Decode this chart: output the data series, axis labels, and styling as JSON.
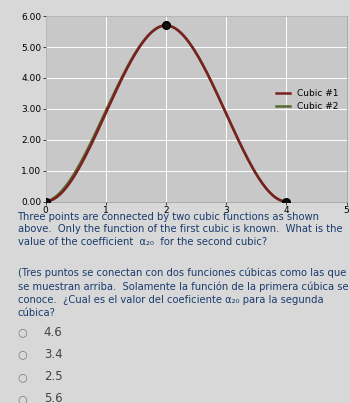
{
  "xlim": [
    0,
    5
  ],
  "ylim": [
    0,
    6.0
  ],
  "yticks": [
    0.0,
    1.0,
    2.0,
    3.0,
    4.0,
    5.0,
    6.0
  ],
  "xticks": [
    0,
    1,
    2,
    3,
    4,
    5
  ],
  "ytick_labels": [
    "0.00",
    "1.00",
    "2.00",
    "3.00",
    "4.00",
    "5.00",
    "6.00"
  ],
  "xtick_labels": [
    "0",
    "1",
    "2",
    "3",
    "4",
    "5"
  ],
  "points": [
    [
      0,
      0
    ],
    [
      2,
      5.7
    ],
    [
      4,
      0
    ]
  ],
  "cubic1_color": "#7B2020",
  "cubic2_color": "#556B2F",
  "point_color": "#000000",
  "bg_color": "#d8d8d8",
  "plot_bg_color": "#c8c8c8",
  "legend_labels": [
    "Cubic #1",
    "Cubic #2"
  ],
  "grid_color": "#ffffff",
  "choices": [
    "4.6",
    "3.4",
    "2.5",
    "5.6"
  ],
  "text_color": "#1a3c6e",
  "choice_color": "#444444"
}
